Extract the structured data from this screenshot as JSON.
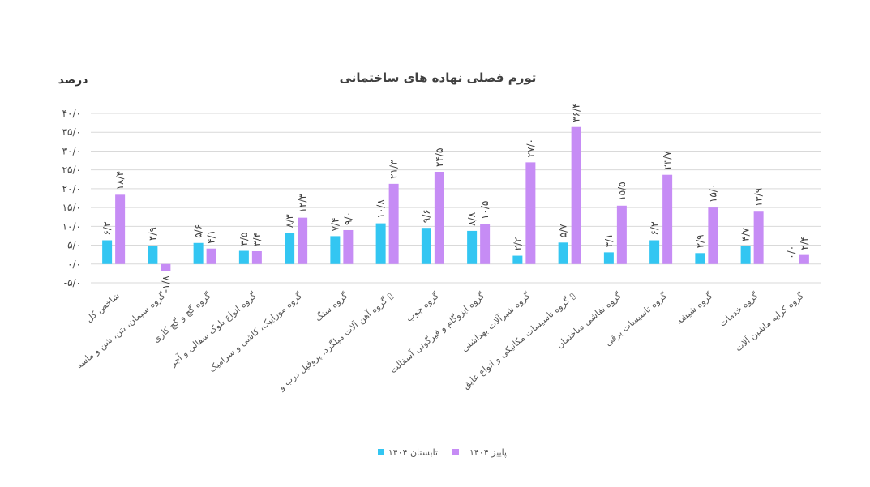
{
  "chart_data": {
    "type": "bar",
    "title": "تورم فصلی نهاده های ساختمانی",
    "ylabel": "درصد",
    "ylim": [
      -5,
      40
    ],
    "yticks": [
      -5,
      0,
      5,
      10,
      15,
      20,
      25,
      30,
      35,
      40
    ],
    "ytick_labels": [
      "-۵/۰",
      "۰/۰",
      "۵/۰",
      "۱۰/۰",
      "۱۵/۰",
      "۲۰/۰",
      "۲۵/۰",
      "۳۰/۰",
      "۳۵/۰",
      "۴۰/۰"
    ],
    "grid": true,
    "legend_placement": "bottom",
    "categories": [
      "شاخص کل",
      "گروه سیمان، بتن، شن و ماسه",
      "گروه گچ و گچ کاری",
      "گروه انواع بلوک سفالی و آجر",
      "گروه موزاییک، کاشی و سرامیک",
      "گروه سنگ",
      "گروه آهن آلات میلگرد، پروفیل درب و ▯",
      "گروه چوب",
      "گروه ایزوگام و قیرگونی آسفالت",
      "گروه شیرآلات بهداشتی",
      "گروه تاسیسات مکانیکی و انواع عایق ▯",
      "گروه نقاشی ساختمان",
      "گروه تاسیسات برقی",
      "گروه شیشه",
      "گروه خدمات",
      "گروه کرایه ماشین آلات"
    ],
    "series": [
      {
        "name": "تابستان ۱۴۰۴",
        "color": "#33c6f2",
        "values": [
          6.3,
          4.9,
          5.6,
          3.5,
          8.3,
          7.4,
          10.8,
          9.6,
          8.8,
          2.2,
          5.7,
          3.1,
          6.3,
          2.9,
          4.7,
          0.0
        ],
        "labels": [
          "۶/۳",
          "۴/۹",
          "۵/۶",
          "۳/۵",
          "۸/۳",
          "۷/۴",
          "۱۰/۸",
          "۹/۶",
          "۸/۸",
          "۲/۲",
          "۵/۷",
          "۳/۱",
          "۶/۳",
          "۲/۹",
          "۴/۷",
          "۰/۰"
        ]
      },
      {
        "name": "پاییز ۱۴۰۴",
        "color": "#c68cf5",
        "values": [
          18.4,
          -1.8,
          4.1,
          3.4,
          12.3,
          9.0,
          21.3,
          24.5,
          10.5,
          27.0,
          36.4,
          15.5,
          23.7,
          15.0,
          13.9,
          2.4
        ],
        "labels": [
          "۱۸/۴",
          "-۱/۸",
          "۴/۱",
          "۳/۴",
          "۱۲/۳",
          "۹/۰",
          "۲۱/۳",
          "۲۴/۵",
          "۱۰/۵",
          "۲۷/۰",
          "۳۶/۴",
          "۱۵/۵",
          "۲۳/۷",
          "۱۵/۰",
          "۱۳/۹",
          "۲/۴"
        ]
      }
    ]
  }
}
